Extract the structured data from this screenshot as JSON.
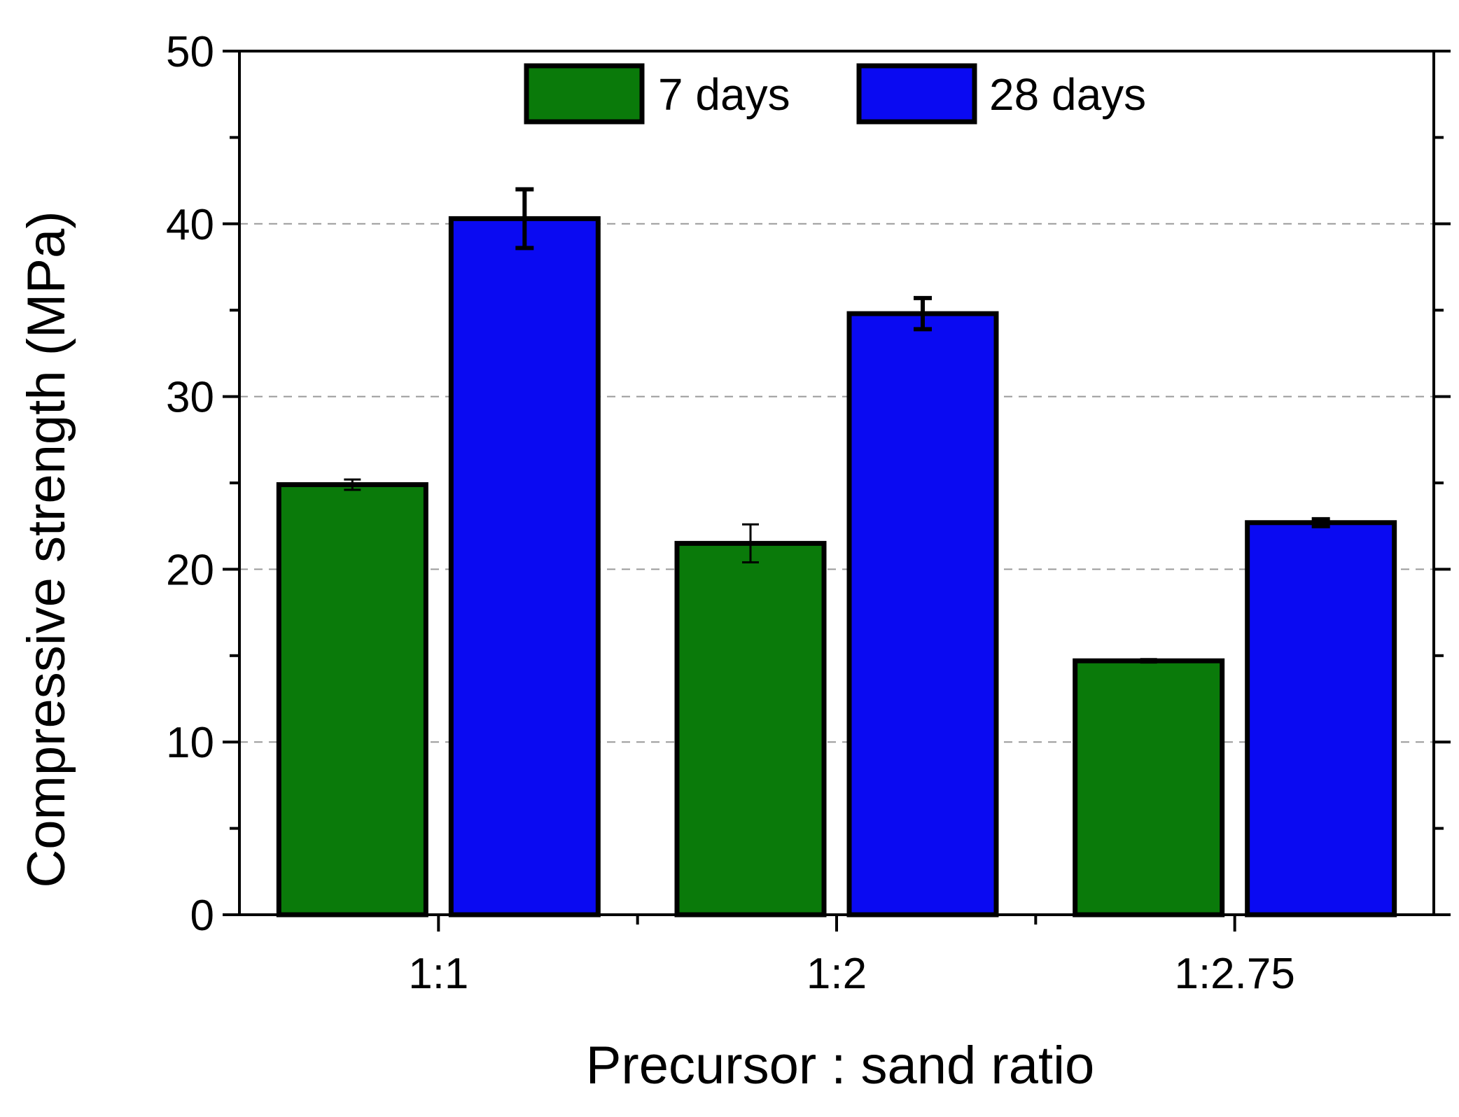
{
  "chart_data": {
    "type": "bar",
    "title": "",
    "xlabel": "Precursor : sand ratio",
    "ylabel": "Compressive strength (MPa)",
    "categories": [
      "1:1",
      "1:2",
      "1:2.75"
    ],
    "series": [
      {
        "name": "7 days",
        "color": "#0a7a0a",
        "values": [
          24.9,
          21.5,
          14.7
        ],
        "errors": [
          0.3,
          1.1,
          0.1
        ]
      },
      {
        "name": "28 days",
        "color": "#0a0af2",
        "values": [
          40.3,
          34.8,
          22.7
        ],
        "errors": [
          1.7,
          0.9,
          0.2
        ]
      }
    ],
    "ylim": [
      0,
      50
    ],
    "yticks": [
      "0",
      "10",
      "20",
      "30",
      "40",
      "50"
    ],
    "grid": true,
    "legend_position": "top-center"
  }
}
